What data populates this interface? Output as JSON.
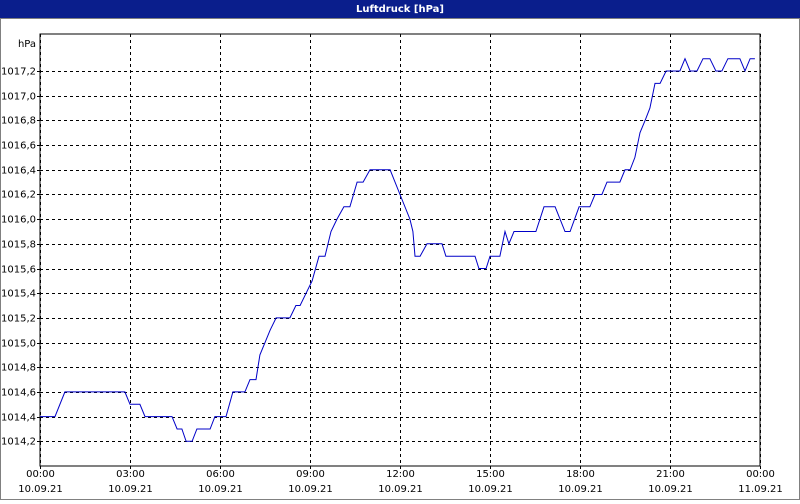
{
  "chart_data": {
    "type": "line",
    "title": "Luftdruck [hPa]",
    "y_unit": "hPa",
    "xlim": [
      0,
      24
    ],
    "ylim": [
      1014.0,
      1017.5
    ],
    "grid": true,
    "xticks": [
      {
        "value": 0,
        "label": "00:00",
        "sublabel": "10.09.21"
      },
      {
        "value": 3,
        "label": "03:00",
        "sublabel": "10.09.21"
      },
      {
        "value": 6,
        "label": "06:00",
        "sublabel": "10.09.21"
      },
      {
        "value": 9,
        "label": "09:00",
        "sublabel": "10.09.21"
      },
      {
        "value": 12,
        "label": "12:00",
        "sublabel": "10.09.21"
      },
      {
        "value": 15,
        "label": "15:00",
        "sublabel": "10.09.21"
      },
      {
        "value": 18,
        "label": "18:00",
        "sublabel": "10.09.21"
      },
      {
        "value": 21,
        "label": "21:00",
        "sublabel": "10.09.21"
      },
      {
        "value": 24,
        "label": "00:00",
        "sublabel": "11.09.21"
      }
    ],
    "yticks": [
      {
        "value": 1014.2,
        "label": "1014,2"
      },
      {
        "value": 1014.4,
        "label": "1014,4"
      },
      {
        "value": 1014.6,
        "label": "1014,6"
      },
      {
        "value": 1014.8,
        "label": "1014,8"
      },
      {
        "value": 1015.0,
        "label": "1015,0"
      },
      {
        "value": 1015.2,
        "label": "1015,2"
      },
      {
        "value": 1015.4,
        "label": "1015,4"
      },
      {
        "value": 1015.6,
        "label": "1015,6"
      },
      {
        "value": 1015.8,
        "label": "1015,8"
      },
      {
        "value": 1016.0,
        "label": "1016,0"
      },
      {
        "value": 1016.2,
        "label": "1016,2"
      },
      {
        "value": 1016.4,
        "label": "1016,4"
      },
      {
        "value": 1016.6,
        "label": "1016,6"
      },
      {
        "value": 1016.8,
        "label": "1016,8"
      },
      {
        "value": 1017.0,
        "label": "1017,0"
      },
      {
        "value": 1017.2,
        "label": "1017,2"
      }
    ],
    "series": [
      {
        "name": "Luftdruck",
        "color": "#0000c8",
        "x": [
          0,
          0.5,
          0.83,
          2.83,
          3.0,
          3.33,
          3.5,
          4.4,
          4.57,
          4.73,
          4.87,
          5.07,
          5.23,
          5.67,
          5.83,
          6.2,
          6.43,
          6.83,
          7.0,
          7.2,
          7.33,
          7.67,
          7.87,
          8.33,
          8.53,
          8.67,
          8.87,
          9.07,
          9.3,
          9.5,
          9.7,
          9.9,
          10.13,
          10.33,
          10.57,
          10.77,
          11.0,
          11.67,
          12.0,
          12.33,
          12.43,
          12.5,
          12.67,
          12.9,
          13.4,
          13.53,
          14.5,
          14.63,
          14.87,
          15.0,
          15.33,
          15.5,
          15.63,
          15.8,
          16.53,
          16.8,
          17.17,
          17.5,
          17.67,
          17.97,
          18.33,
          18.5,
          18.73,
          18.9,
          19.33,
          19.5,
          19.67,
          19.83,
          20.0,
          20.17,
          20.33,
          20.5,
          20.67,
          20.87,
          21.33,
          21.5,
          21.67,
          21.9,
          22.1,
          22.33,
          22.53,
          22.73,
          22.93,
          23.33,
          23.5,
          23.67,
          23.83
        ],
        "values": [
          1014.4,
          1014.4,
          1014.6,
          1014.6,
          1014.5,
          1014.5,
          1014.4,
          1014.4,
          1014.3,
          1014.3,
          1014.2,
          1014.2,
          1014.3,
          1014.3,
          1014.4,
          1014.4,
          1014.6,
          1014.6,
          1014.7,
          1014.7,
          1014.9,
          1015.1,
          1015.2,
          1015.2,
          1015.3,
          1015.3,
          1015.4,
          1015.5,
          1015.7,
          1015.7,
          1015.9,
          1016.0,
          1016.1,
          1016.1,
          1016.3,
          1016.3,
          1016.4,
          1016.4,
          1016.2,
          1016.0,
          1015.9,
          1015.7,
          1015.7,
          1015.8,
          1015.8,
          1015.7,
          1015.7,
          1015.6,
          1015.6,
          1015.7,
          1015.7,
          1015.9,
          1015.8,
          1015.9,
          1015.9,
          1016.1,
          1016.1,
          1015.9,
          1015.9,
          1016.1,
          1016.1,
          1016.2,
          1016.2,
          1016.3,
          1016.3,
          1016.4,
          1016.4,
          1016.5,
          1016.7,
          1016.8,
          1016.9,
          1017.1,
          1017.1,
          1017.2,
          1017.2,
          1017.3,
          1017.2,
          1017.2,
          1017.3,
          1017.3,
          1017.2,
          1017.2,
          1017.3,
          1017.3,
          1017.2,
          1017.3,
          1017.3
        ]
      }
    ]
  }
}
